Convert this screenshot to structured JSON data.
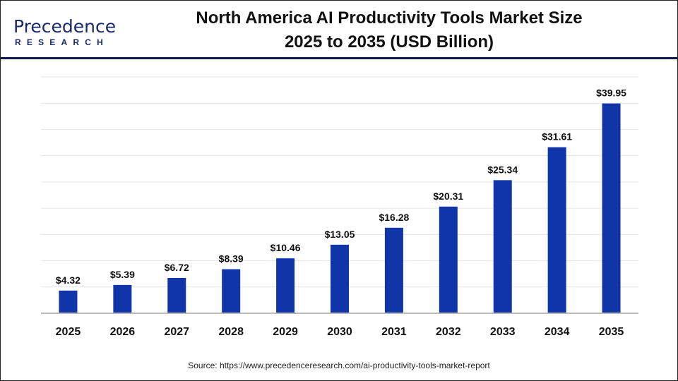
{
  "logo": {
    "main": "Precedence",
    "sub": "RESEARCH"
  },
  "title_line1": "North America AI Productivity Tools Market Size",
  "title_line2": "2025 to 2035 (USD Billion)",
  "source": "Source: https://www.precedenceresearch.com/ai-productivity-tools-market-report",
  "chart_data": {
    "type": "bar",
    "title": "North America AI Productivity Tools Market Size 2025 to 2035 (USD Billion)",
    "categories": [
      "2025",
      "2026",
      "2027",
      "2028",
      "2029",
      "2030",
      "2031",
      "2032",
      "2033",
      "2034",
      "2035"
    ],
    "values": [
      4.32,
      5.39,
      6.72,
      8.39,
      10.46,
      13.05,
      16.28,
      20.31,
      25.34,
      31.61,
      39.95
    ],
    "data_labels": [
      "$4.32",
      "$5.39",
      "$6.72",
      "$8.39",
      "$10.46",
      "$13.05",
      "$16.28",
      "$20.31",
      "$25.34",
      "$31.61",
      "$39.95"
    ],
    "xlabel": "",
    "ylabel": "",
    "ylim": [
      0,
      45
    ],
    "grid": true,
    "bar_color": "#0f35a8"
  }
}
